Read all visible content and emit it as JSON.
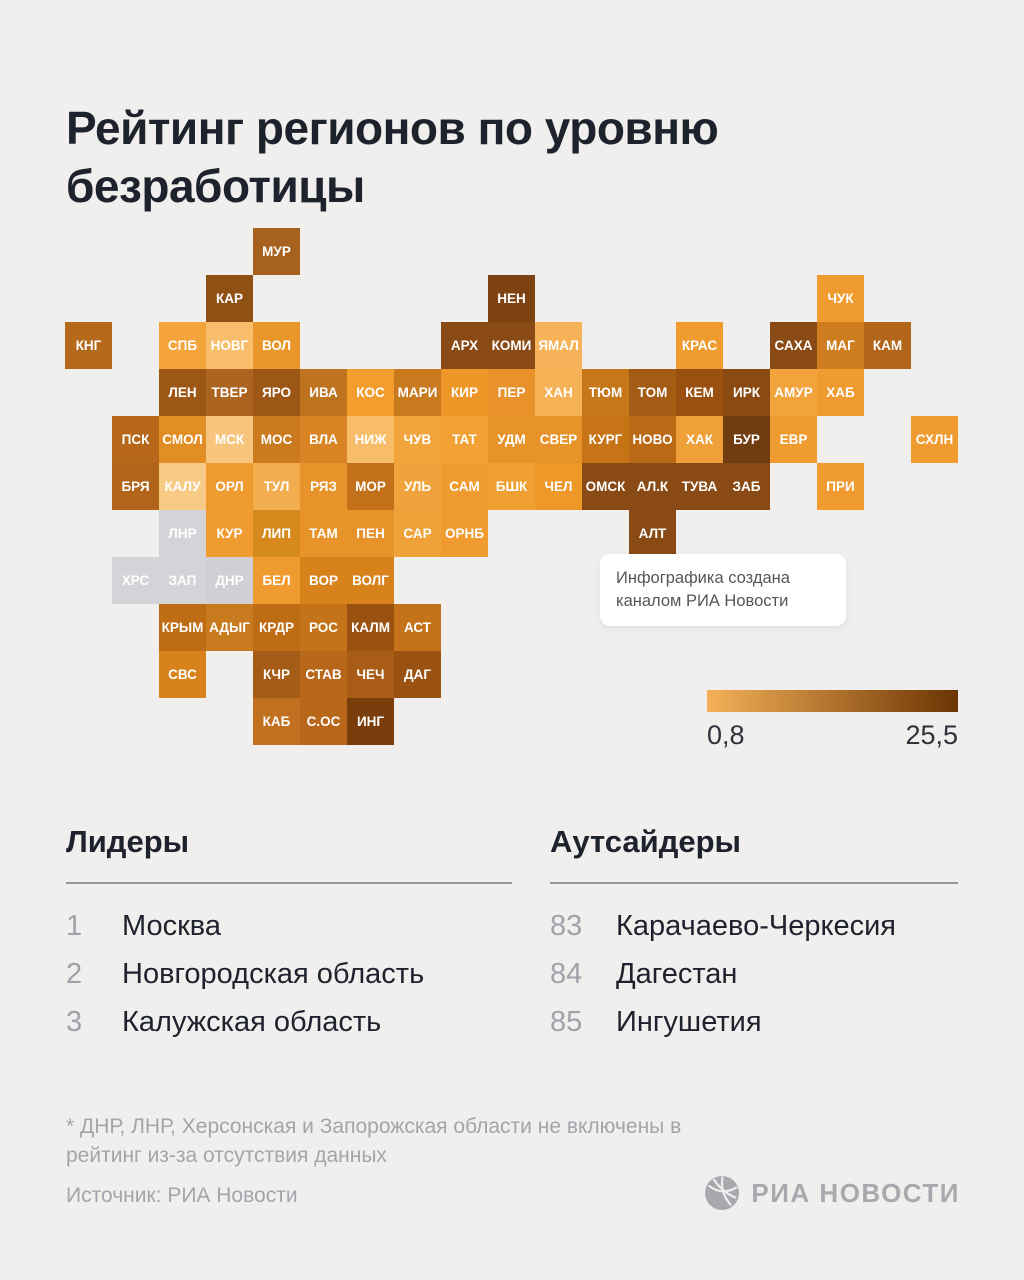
{
  "title": "Рейтинг регионов по уровню безработицы",
  "note": {
    "text": "Инфографика создана каналом РИА Новости"
  },
  "legend": {
    "min_label": "0,8",
    "max_label": "25,5"
  },
  "leaders": {
    "heading": "Лидеры",
    "items": [
      {
        "rank": "1",
        "name": "Москва"
      },
      {
        "rank": "2",
        "name": "Новгородская область"
      },
      {
        "rank": "3",
        "name": "Калужская область"
      }
    ]
  },
  "outsiders": {
    "heading": "Аутсайдеры",
    "items": [
      {
        "rank": "83",
        "name": "Карачаево-Черкесия"
      },
      {
        "rank": "84",
        "name": "Дагестан"
      },
      {
        "rank": "85",
        "name": "Ингушетия"
      }
    ]
  },
  "footnote": {
    "text": "* ДНР, ЛНР, Херсонская и Запорожская области не включены в рейтинг из-за отсутствия данных"
  },
  "source": "Источник: РИА Новости",
  "logo": {
    "text": "РИА НОВОСТИ"
  },
  "chart_data": {
    "type": "heatmap",
    "title": "Рейтинг регионов по уровню безработицы",
    "legend": {
      "min_value": 0.8,
      "max_value": 25.5,
      "min_label": "0,8",
      "max_label": "25,5",
      "gradient_start": "#F5B158",
      "gradient_end": "#6B3403",
      "no_data_color": "#D4D4D8"
    },
    "excluded_regions": [
      "ДНР",
      "ЛНР",
      "ХРС",
      "ЗАП"
    ],
    "leaders": [
      [
        "1",
        "Москва"
      ],
      [
        "2",
        "Новгородская область"
      ],
      [
        "3",
        "Калужская область"
      ]
    ],
    "outsiders": [
      [
        "83",
        "Карачаево-Черкесия"
      ],
      [
        "84",
        "Дагестан"
      ],
      [
        "85",
        "Ингушетия"
      ]
    ],
    "tiles": [
      {
        "code": "МУР",
        "col": 5,
        "row": 1,
        "color": "#A6611E"
      },
      {
        "code": "КАР",
        "col": 4,
        "row": 2,
        "color": "#8F5013"
      },
      {
        "code": "НЕН",
        "col": 10,
        "row": 2,
        "color": "#7C4310"
      },
      {
        "code": "ЧУК",
        "col": 17,
        "row": 2,
        "color": "#F09B2F"
      },
      {
        "code": "КНГ",
        "col": 1,
        "row": 3,
        "color": "#B56A1B"
      },
      {
        "code": "СПБ",
        "col": 3,
        "row": 3,
        "color": "#F5A43C"
      },
      {
        "code": "НОВГ",
        "col": 4,
        "row": 3,
        "color": "#F8BE6B"
      },
      {
        "code": "ВОЛ",
        "col": 5,
        "row": 3,
        "color": "#E9962B"
      },
      {
        "code": "АРХ",
        "col": 9,
        "row": 3,
        "color": "#8A4A15"
      },
      {
        "code": "КОМИ",
        "col": 10,
        "row": 3,
        "color": "#8A4A15"
      },
      {
        "code": "ЯМАЛ",
        "col": 11,
        "row": 3,
        "color": "#F6B359"
      },
      {
        "code": "КРАС",
        "col": 14,
        "row": 3,
        "color": "#F09B2F"
      },
      {
        "code": "САХА",
        "col": 16,
        "row": 3,
        "color": "#8A4A15"
      },
      {
        "code": "МАГ",
        "col": 17,
        "row": 3,
        "color": "#CE7E1E"
      },
      {
        "code": "КАМ",
        "col": 18,
        "row": 3,
        "color": "#B2661A"
      },
      {
        "code": "ЛЕН",
        "col": 3,
        "row": 4,
        "color": "#9C5716"
      },
      {
        "code": "ТВЕР",
        "col": 4,
        "row": 4,
        "color": "#AD6420"
      },
      {
        "code": "ЯРО",
        "col": 5,
        "row": 4,
        "color": "#9C5716"
      },
      {
        "code": "ИВА",
        "col": 6,
        "row": 4,
        "color": "#BE731F"
      },
      {
        "code": "КОС",
        "col": 7,
        "row": 4,
        "color": "#F49D2F"
      },
      {
        "code": "МАРИ",
        "col": 8,
        "row": 4,
        "color": "#C97A1E"
      },
      {
        "code": "КИР",
        "col": 9,
        "row": 4,
        "color": "#EE9729"
      },
      {
        "code": "ПЕР",
        "col": 10,
        "row": 4,
        "color": "#E9922B"
      },
      {
        "code": "ХАН",
        "col": 11,
        "row": 4,
        "color": "#F6B257"
      },
      {
        "code": "ТЮМ",
        "col": 12,
        "row": 4,
        "color": "#C67719"
      },
      {
        "code": "ТОМ",
        "col": 13,
        "row": 4,
        "color": "#A45B14"
      },
      {
        "code": "КЕМ",
        "col": 14,
        "row": 4,
        "color": "#9A5010"
      },
      {
        "code": "ИРК",
        "col": 15,
        "row": 4,
        "color": "#8A4A12"
      },
      {
        "code": "АМУР",
        "col": 16,
        "row": 4,
        "color": "#F2A33C"
      },
      {
        "code": "ХАБ",
        "col": 17,
        "row": 4,
        "color": "#F09B2F"
      },
      {
        "code": "ПСК",
        "col": 2,
        "row": 5,
        "color": "#B76719"
      },
      {
        "code": "СМОЛ",
        "col": 3,
        "row": 5,
        "color": "#E18E25"
      },
      {
        "code": "МСК",
        "col": 4,
        "row": 5,
        "color": "#F7C57D"
      },
      {
        "code": "МОС",
        "col": 5,
        "row": 5,
        "color": "#CC7A1E"
      },
      {
        "code": "ВЛА",
        "col": 6,
        "row": 5,
        "color": "#D98424"
      },
      {
        "code": "НИЖ",
        "col": 7,
        "row": 5,
        "color": "#F7BD69"
      },
      {
        "code": "ЧУВ",
        "col": 8,
        "row": 5,
        "color": "#F2A53D"
      },
      {
        "code": "ТАТ",
        "col": 9,
        "row": 5,
        "color": "#F2A235"
      },
      {
        "code": "УДМ",
        "col": 10,
        "row": 5,
        "color": "#E8922A"
      },
      {
        "code": "СВЕР",
        "col": 11,
        "row": 5,
        "color": "#E8922A"
      },
      {
        "code": "КУРГ",
        "col": 12,
        "row": 5,
        "color": "#C77417"
      },
      {
        "code": "НОВО",
        "col": 13,
        "row": 5,
        "color": "#BA6A15"
      },
      {
        "code": "ХАК",
        "col": 14,
        "row": 5,
        "color": "#F0A038"
      },
      {
        "code": "БУР",
        "col": 15,
        "row": 5,
        "color": "#6F3D10"
      },
      {
        "code": "ЕВР",
        "col": 16,
        "row": 5,
        "color": "#F09B2F"
      },
      {
        "code": "СХЛН",
        "col": 19,
        "row": 5,
        "color": "#F09B2F"
      },
      {
        "code": "БРЯ",
        "col": 2,
        "row": 6,
        "color": "#B2641A"
      },
      {
        "code": "КАЛУ",
        "col": 3,
        "row": 6,
        "color": "#F7CA85"
      },
      {
        "code": "ОРЛ",
        "col": 4,
        "row": 6,
        "color": "#F09B2F"
      },
      {
        "code": "ТУЛ",
        "col": 5,
        "row": 6,
        "color": "#F2AE4E"
      },
      {
        "code": "РЯЗ",
        "col": 6,
        "row": 6,
        "color": "#E8922A"
      },
      {
        "code": "МОР",
        "col": 7,
        "row": 6,
        "color": "#C2701A"
      },
      {
        "code": "УЛЬ",
        "col": 8,
        "row": 6,
        "color": "#F0A33C"
      },
      {
        "code": "САМ",
        "col": 9,
        "row": 6,
        "color": "#F09B2F"
      },
      {
        "code": "БШК",
        "col": 10,
        "row": 6,
        "color": "#F0A030"
      },
      {
        "code": "ЧЕЛ",
        "col": 11,
        "row": 6,
        "color": "#ED9829"
      },
      {
        "code": "ОМСК",
        "col": 12,
        "row": 6,
        "color": "#8A4A15"
      },
      {
        "code": "АЛ.К",
        "col": 13,
        "row": 6,
        "color": "#8A4A15"
      },
      {
        "code": "ТУВА",
        "col": 14,
        "row": 6,
        "color": "#8A4A15"
      },
      {
        "code": "ЗАБ",
        "col": 15,
        "row": 6,
        "color": "#8A4A15"
      },
      {
        "code": "ПРИ",
        "col": 17,
        "row": 6,
        "color": "#F09B2F"
      },
      {
        "code": "ЛНР",
        "col": 3,
        "row": 7,
        "color": "#D4D4D8"
      },
      {
        "code": "КУР",
        "col": 4,
        "row": 7,
        "color": "#F09B2F"
      },
      {
        "code": "ЛИП",
        "col": 5,
        "row": 7,
        "color": "#D68A1D"
      },
      {
        "code": "ТАМ",
        "col": 6,
        "row": 7,
        "color": "#E8922A"
      },
      {
        "code": "ПЕН",
        "col": 7,
        "row": 7,
        "color": "#E8922A"
      },
      {
        "code": "САР",
        "col": 8,
        "row": 7,
        "color": "#F0A23A"
      },
      {
        "code": "ОРНБ",
        "col": 9,
        "row": 7,
        "color": "#F09B2F"
      },
      {
        "code": "АЛТ",
        "col": 13,
        "row": 7,
        "color": "#8A4A15"
      },
      {
        "code": "ХРС",
        "col": 2,
        "row": 8,
        "color": "#D4D4D8"
      },
      {
        "code": "ЗАП",
        "col": 3,
        "row": 8,
        "color": "#D4D4D8"
      },
      {
        "code": "ДНР",
        "col": 4,
        "row": 8,
        "color": "#CFCFD4"
      },
      {
        "code": "БЕЛ",
        "col": 5,
        "row": 8,
        "color": "#F09B2F"
      },
      {
        "code": "ВОР",
        "col": 6,
        "row": 8,
        "color": "#D8821C"
      },
      {
        "code": "ВОЛГ",
        "col": 7,
        "row": 8,
        "color": "#D8821C"
      },
      {
        "code": "КРЫМ",
        "col": 3,
        "row": 9,
        "color": "#BF6D15"
      },
      {
        "code": "АДЫГ",
        "col": 4,
        "row": 9,
        "color": "#C87A1E"
      },
      {
        "code": "КРДР",
        "col": 5,
        "row": 9,
        "color": "#BF6D15"
      },
      {
        "code": "РОС",
        "col": 6,
        "row": 9,
        "color": "#C5731A"
      },
      {
        "code": "КАЛМ",
        "col": 7,
        "row": 9,
        "color": "#9A5210"
      },
      {
        "code": "АСТ",
        "col": 8,
        "row": 9,
        "color": "#C5731A"
      },
      {
        "code": "СВС",
        "col": 3,
        "row": 10,
        "color": "#D8821C"
      },
      {
        "code": "КЧР",
        "col": 5,
        "row": 10,
        "color": "#A45C16"
      },
      {
        "code": "СТАВ",
        "col": 6,
        "row": 10,
        "color": "#B8661A"
      },
      {
        "code": "ЧЕЧ",
        "col": 7,
        "row": 10,
        "color": "#A85C16"
      },
      {
        "code": "ДАГ",
        "col": 8,
        "row": 10,
        "color": "#9A5212"
      },
      {
        "code": "КАБ",
        "col": 5,
        "row": 11,
        "color": "#C17020"
      },
      {
        "code": "С.ОС",
        "col": 6,
        "row": 11,
        "color": "#B8661A"
      },
      {
        "code": "ИНГ",
        "col": 7,
        "row": 11,
        "color": "#7A3E0C"
      }
    ]
  }
}
